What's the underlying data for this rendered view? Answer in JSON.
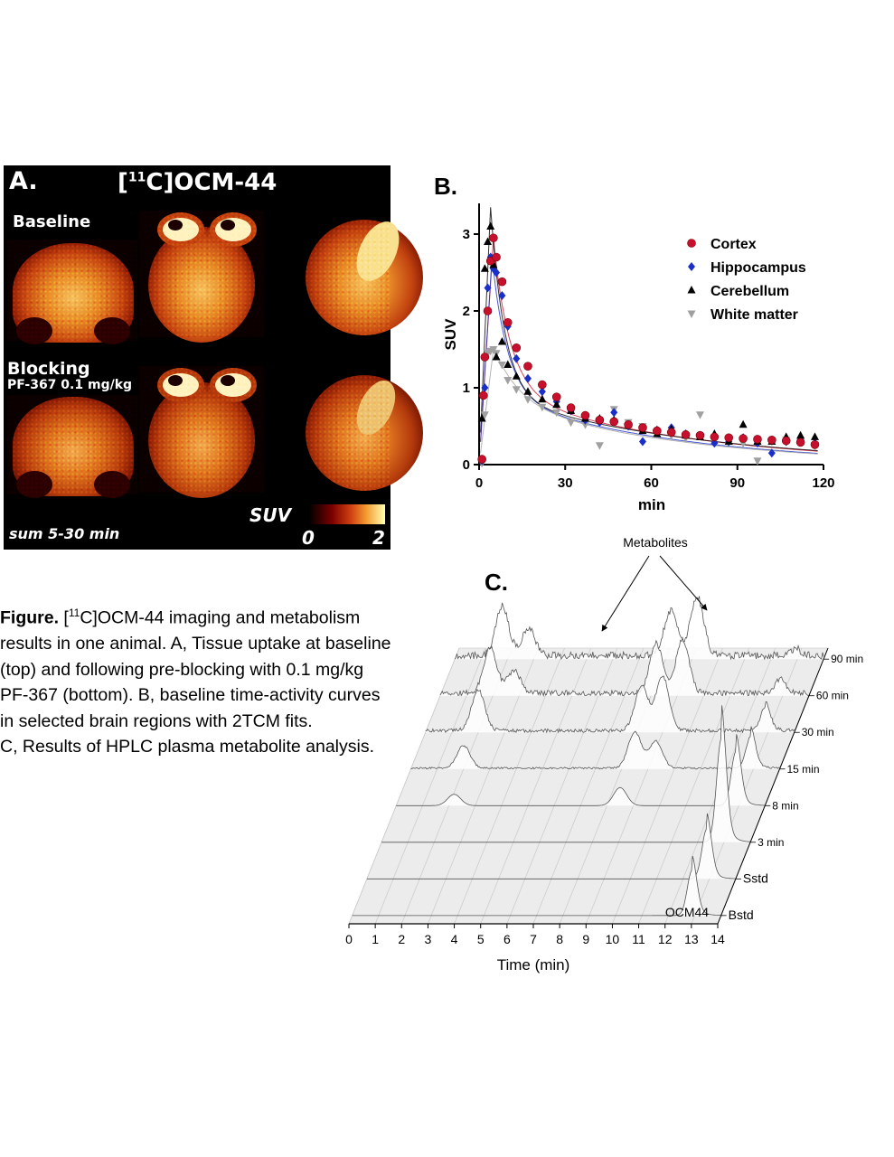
{
  "panel_a": {
    "label": "A.",
    "tracer_prefix": "[",
    "tracer_sup": "11",
    "tracer_rest": "C]OCM-44",
    "row1": "Baseline",
    "row2_title": "Blocking",
    "row2_sub": "PF-367 0.1 mg/kg",
    "sum_label": "sum 5-30 min",
    "suv_label": "SUV",
    "cbar_min": "0",
    "cbar_max": "2"
  },
  "panel_b": {
    "label": "B.",
    "chart_data": {
      "type": "scatter",
      "xlabel": "min",
      "ylabel": "SUV",
      "xlim": [
        0,
        120
      ],
      "ylim": [
        0,
        3.4
      ],
      "xticks": [
        "0",
        "30",
        "60",
        "90",
        "120"
      ],
      "yticks": [
        "0",
        "1",
        "2",
        "3"
      ],
      "legend_position": "top-right",
      "series": [
        {
          "name": "Cortex",
          "color": "#c8102e",
          "marker": "circle",
          "x": [
            1,
            1.5,
            2,
            3,
            4,
            5,
            6,
            8,
            10,
            13,
            17,
            22,
            27,
            32,
            37,
            42,
            47,
            52,
            57,
            62,
            67,
            72,
            77,
            82,
            87,
            92,
            97,
            102,
            107,
            112,
            117
          ],
          "y": [
            0.07,
            0.9,
            1.4,
            2.0,
            2.65,
            2.95,
            2.7,
            2.38,
            1.85,
            1.52,
            1.28,
            1.04,
            0.88,
            0.74,
            0.64,
            0.58,
            0.56,
            0.52,
            0.48,
            0.44,
            0.42,
            0.39,
            0.38,
            0.36,
            0.35,
            0.34,
            0.33,
            0.32,
            0.31,
            0.29,
            0.26
          ]
        },
        {
          "name": "Hippocampus",
          "color": "#1a2fc8",
          "marker": "diamond",
          "x": [
            1,
            2,
            3,
            4,
            5,
            6,
            8,
            10,
            13,
            17,
            22,
            27,
            32,
            37,
            42,
            47,
            52,
            57,
            62,
            67,
            72,
            77,
            82,
            87,
            92,
            97,
            102,
            107,
            112,
            117
          ],
          "y": [
            0.05,
            1.0,
            2.3,
            2.7,
            2.55,
            2.5,
            2.2,
            1.8,
            1.38,
            1.12,
            0.95,
            0.82,
            0.7,
            0.58,
            0.55,
            0.68,
            0.5,
            0.3,
            0.45,
            0.48,
            0.4,
            0.38,
            0.28,
            0.3,
            0.35,
            0.28,
            0.15,
            0.3,
            0.32,
            0.28
          ]
        },
        {
          "name": "Cerebellum",
          "color": "#000000",
          "marker": "triangle-up",
          "x": [
            1,
            2,
            3,
            4,
            5,
            6,
            8,
            10,
            13,
            17,
            22,
            27,
            32,
            37,
            42,
            47,
            52,
            57,
            62,
            67,
            72,
            77,
            82,
            87,
            92,
            97,
            102,
            107,
            112,
            117
          ],
          "y": [
            0.6,
            2.55,
            2.9,
            3.1,
            2.6,
            1.4,
            1.6,
            1.3,
            1.15,
            0.95,
            0.85,
            0.78,
            0.7,
            0.6,
            0.6,
            0.58,
            0.52,
            0.44,
            0.4,
            0.46,
            0.38,
            0.36,
            0.4,
            0.3,
            0.52,
            0.3,
            0.3,
            0.36,
            0.38,
            0.36
          ]
        },
        {
          "name": "White matter",
          "color": "#a0a0a0",
          "marker": "triangle-down",
          "x": [
            1,
            2,
            3,
            4,
            5,
            6,
            8,
            10,
            13,
            17,
            22,
            27,
            32,
            37,
            42,
            47,
            52,
            57,
            62,
            67,
            72,
            77,
            82,
            87,
            92,
            97,
            102,
            107,
            112,
            117
          ],
          "y": [
            0.02,
            0.65,
            1.45,
            1.48,
            1.5,
            1.45,
            1.3,
            1.1,
            0.98,
            0.85,
            0.75,
            0.68,
            0.55,
            0.52,
            0.25,
            0.72,
            0.55,
            0.5,
            0.4,
            0.38,
            0.35,
            0.65,
            0.32,
            0.3,
            0.28,
            0.05,
            0.3,
            0.32,
            0.3,
            0.25
          ]
        }
      ],
      "fits": [
        {
          "color": "#c8102e",
          "peak": 2.95,
          "peak_x": 5,
          "a": 1.85,
          "ka": 0.16,
          "b": 0.95,
          "kb": 0.015
        },
        {
          "color": "#1a2fc8",
          "peak": 2.7,
          "peak_x": 4.5,
          "a": 1.75,
          "ka": 0.18,
          "b": 0.9,
          "kb": 0.016
        },
        {
          "color": "#000000",
          "peak": 3.35,
          "peak_x": 4,
          "a": 2.4,
          "ka": 0.2,
          "b": 0.9,
          "kb": 0.014
        },
        {
          "color": "#a0a0a0",
          "peak": 1.5,
          "peak_x": 5,
          "a": 0.7,
          "ka": 0.12,
          "b": 0.85,
          "kb": 0.016
        }
      ]
    }
  },
  "panel_c": {
    "label": "C.",
    "annotation": "Metabolites",
    "chart_data": {
      "type": "line",
      "xlabel": "Time (min)",
      "xlim": [
        0,
        14
      ],
      "xticks": [
        "0",
        "1",
        "2",
        "3",
        "4",
        "5",
        "6",
        "7",
        "8",
        "9",
        "10",
        "11",
        "12",
        "13",
        "14"
      ],
      "peak_label": "OCM44",
      "series": [
        {
          "name": "Bstd",
          "peaks": [
            [
              12.9,
              1.0
            ]
          ]
        },
        {
          "name": "Sstd",
          "peaks": [
            [
              12.9,
              1.1
            ]
          ]
        },
        {
          "name": "3 min",
          "peaks": [
            [
              12.9,
              2.3
            ]
          ]
        },
        {
          "name": "8 min",
          "peaks": [
            [
              2.2,
              0.25
            ],
            [
              8.5,
              0.4
            ],
            [
              12.9,
              1.2
            ]
          ]
        },
        {
          "name": "15 min",
          "peaks": [
            [
              2.0,
              0.5
            ],
            [
              8.5,
              0.8
            ],
            [
              9.3,
              0.6
            ],
            [
              12.9,
              0.7
            ]
          ]
        },
        {
          "name": "30 min",
          "peaks": [
            [
              2.0,
              0.9
            ],
            [
              8.2,
              1.0
            ],
            [
              9.0,
              1.2
            ],
            [
              12.9,
              0.5
            ]
          ]
        },
        {
          "name": "60 min",
          "peaks": [
            [
              1.9,
              1.0
            ],
            [
              2.8,
              0.5
            ],
            [
              8.2,
              1.1
            ],
            [
              9.2,
              1.2
            ],
            [
              12.9,
              0.3
            ]
          ]
        },
        {
          "name": "90 min",
          "peaks": [
            [
              1.8,
              1.1
            ],
            [
              2.8,
              0.6
            ],
            [
              8.2,
              1.0
            ],
            [
              9.2,
              1.3
            ],
            [
              12.9,
              0.15
            ]
          ]
        }
      ]
    }
  },
  "caption": {
    "bold": "Figure.",
    "line1_pre": " [",
    "line1_sup": "11",
    "line1_post": "C]OCM-44 imaging and metabolism",
    "line2": "results in one animal. A, Tissue uptake at baseline",
    "line3": "(top) and following pre-blocking with 0.1 mg/kg",
    "line4": "PF-367 (bottom). B, baseline time-activity curves",
    "line5": "in selected brain regions with 2TCM fits.",
    "line6": "C, Results of HPLC plasma metabolite analysis."
  }
}
